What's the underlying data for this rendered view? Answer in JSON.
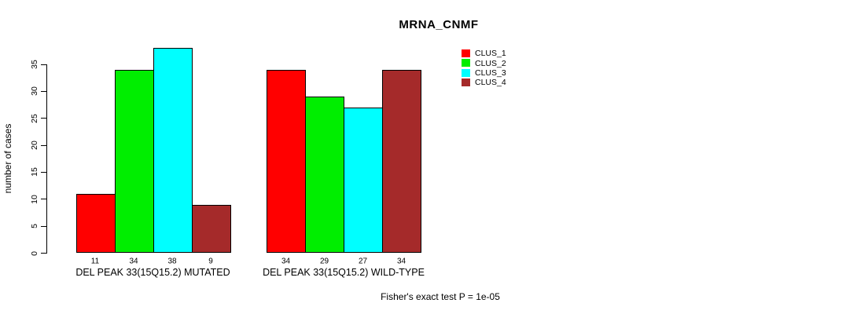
{
  "chart_data": {
    "type": "bar",
    "title": "MRNA_CNMF",
    "ylabel": "number of cases",
    "xlabel": "",
    "ylim": [
      0,
      38
    ],
    "yticks": [
      0,
      5,
      10,
      15,
      20,
      25,
      30,
      35
    ],
    "categories": [
      "DEL PEAK 33(15Q15.2) MUTATED",
      "DEL PEAK 33(15Q15.2) WILD-TYPE"
    ],
    "series": [
      {
        "name": "CLUS_1",
        "color": "#FF0000",
        "values": [
          11,
          34
        ]
      },
      {
        "name": "CLUS_2",
        "color": "#00EE00",
        "values": [
          34,
          29
        ]
      },
      {
        "name": "CLUS_3",
        "color": "#00FFFF",
        "values": [
          38,
          27
        ]
      },
      {
        "name": "CLUS_4",
        "color": "#A52A2A",
        "values": [
          9,
          34
        ]
      }
    ],
    "bar_value_labels": [
      [
        "11",
        "34",
        "38",
        "9"
      ],
      [
        "34",
        "29",
        "27",
        "34"
      ]
    ],
    "legend": {
      "position": "top-right-of-plot",
      "entries": [
        "CLUS_1",
        "CLUS_2",
        "CLUS_3",
        "CLUS_4"
      ]
    },
    "grid": false,
    "annotation": "Fisher's exact test P = 1e-05",
    "background_color": "#FFFFFF",
    "axis_color": "#000000"
  }
}
